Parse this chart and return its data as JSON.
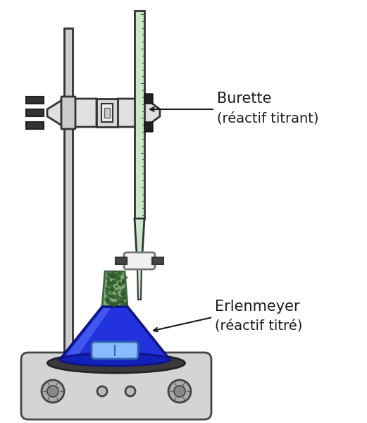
{
  "background_color": "#ffffff",
  "label_burette": "Burette",
  "label_burette_sub": "(réactif titrant)",
  "label_erlenmeyer": "Erlenmeyer",
  "label_erlenmeyer_sub": "(réactif titré)",
  "label_fontsize": 15,
  "label_color": "#1a1a1a",
  "arrow_color": "#1a1a1a",
  "stand_color": "#cccccc",
  "stand_outline": "#333333",
  "burette_glass_color": "#c8e8c8",
  "burette_outline": "#333333",
  "flask_blue": "#2222cc",
  "hotplate_body": "#d0d0d0",
  "hotplate_dark": "#444444"
}
